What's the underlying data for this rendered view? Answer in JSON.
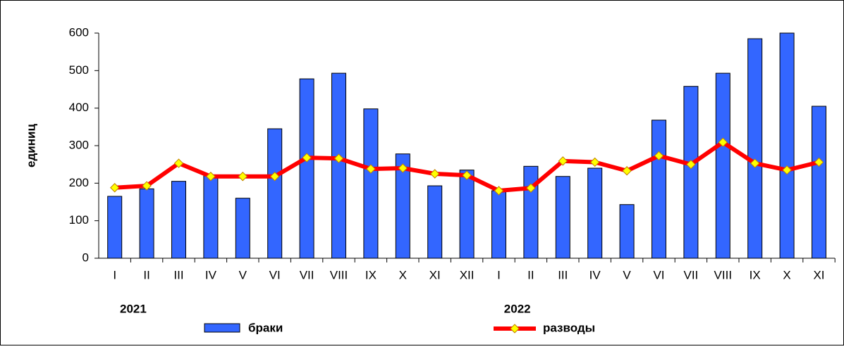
{
  "chart_data": {
    "type": "bar_line",
    "y_label": "единиц",
    "categories": [
      "I",
      "II",
      "III",
      "IV",
      "V",
      "VI",
      "VII",
      "VIII",
      "IX",
      "X",
      "XI",
      "XII",
      "I",
      "II",
      "III",
      "IV",
      "V",
      "VI",
      "VII",
      "VIII",
      "IX",
      "X",
      "XI"
    ],
    "year_labels": [
      "2021",
      "2022"
    ],
    "series": [
      {
        "name": "браки",
        "type": "bar",
        "color": "#3366ff",
        "values": [
          165,
          185,
          205,
          220,
          160,
          345,
          478,
          493,
          398,
          278,
          193,
          235,
          180,
          245,
          218,
          240,
          143,
          368,
          458,
          493,
          585,
          600,
          405
        ]
      },
      {
        "name": "разводы",
        "type": "line",
        "color": "#ff0000",
        "marker_color": "#ffff00",
        "values": [
          188,
          193,
          253,
          218,
          218,
          218,
          268,
          266,
          238,
          240,
          225,
          221,
          180,
          187,
          259,
          256,
          233,
          273,
          250,
          309,
          253,
          235,
          256
        ]
      }
    ],
    "ylim": [
      0,
      600
    ],
    "yticks": [
      0,
      100,
      200,
      300,
      400,
      500,
      600
    ]
  }
}
